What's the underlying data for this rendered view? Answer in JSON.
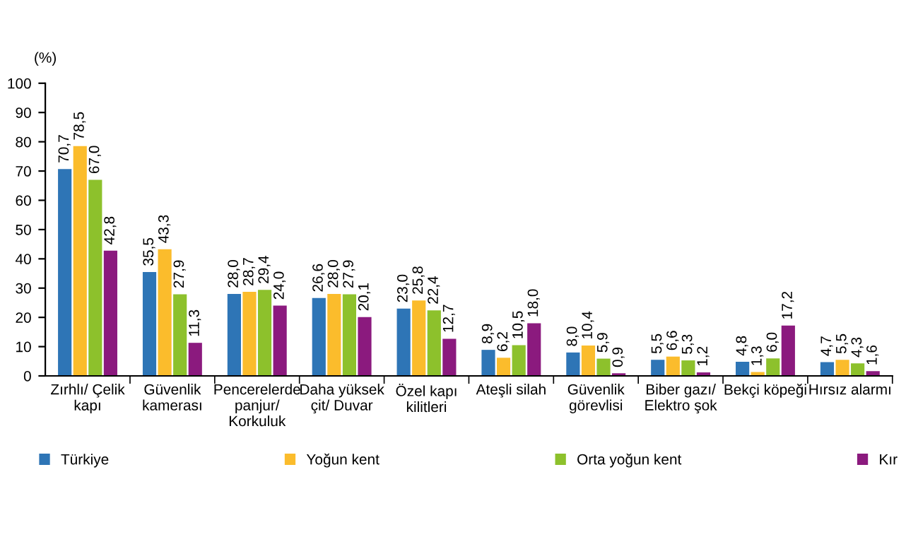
{
  "chart_data": {
    "type": "bar",
    "ylabel": "(%)",
    "categories": [
      "Zırhlı/ Çelik\nkapı",
      "Güvenlik\nkamerası",
      "Pencerelerde\npanjur/\nKorkuluk",
      "Daha yüksek\nçit/ Duvar",
      "Özel kapı\nkilitleri",
      "Ateşli silah",
      "Güvenlik\ngörevlisi",
      "Biber gazı/\nElektro şok",
      "Bekçi köpeği",
      "Hırsız alarmı"
    ],
    "series": [
      {
        "name": "Türkiye",
        "color": "#2e75b6",
        "values": [
          70.7,
          35.5,
          28.0,
          26.6,
          23.0,
          8.9,
          8.0,
          5.5,
          4.8,
          4.7
        ],
        "value_labels": [
          "70,7",
          "35,5",
          "28,0",
          "26,6",
          "23,0",
          "8,9",
          "8,0",
          "5,5",
          "4,8",
          "4,7"
        ]
      },
      {
        "name": "Yoğun kent",
        "color": "#fbbc2c",
        "values": [
          78.5,
          43.3,
          28.7,
          28.0,
          25.8,
          6.2,
          10.4,
          6.6,
          1.3,
          5.5
        ],
        "value_labels": [
          "78,5",
          "43,3",
          "28,7",
          "28,0",
          "25,8",
          "6,2",
          "10,4",
          "6,6",
          "1,3",
          "5,5"
        ]
      },
      {
        "name": "Orta yoğun kent",
        "color": "#8dc12c",
        "values": [
          67.0,
          27.9,
          29.4,
          27.9,
          22.4,
          10.5,
          5.9,
          5.3,
          6.0,
          4.3
        ],
        "value_labels": [
          "67,0",
          "27,9",
          "29,4",
          "27,9",
          "22,4",
          "10,5",
          "5,9",
          "5,3",
          "6,0",
          "4,3"
        ]
      },
      {
        "name": "Kır",
        "color": "#8b1a7e",
        "values": [
          42.8,
          11.3,
          24.0,
          20.1,
          12.7,
          18.0,
          0.9,
          1.2,
          17.2,
          1.6
        ],
        "value_labels": [
          "42,8",
          "11,3",
          "24,0",
          "20,1",
          "12,7",
          "18,0",
          "0,9",
          "1,2",
          "17,2",
          "1,6"
        ]
      }
    ],
    "ylim": [
      0,
      100
    ],
    "yticks": [
      0,
      10,
      20,
      30,
      40,
      50,
      60,
      70,
      80,
      90,
      100
    ],
    "grid": false,
    "legend": "bottom"
  }
}
